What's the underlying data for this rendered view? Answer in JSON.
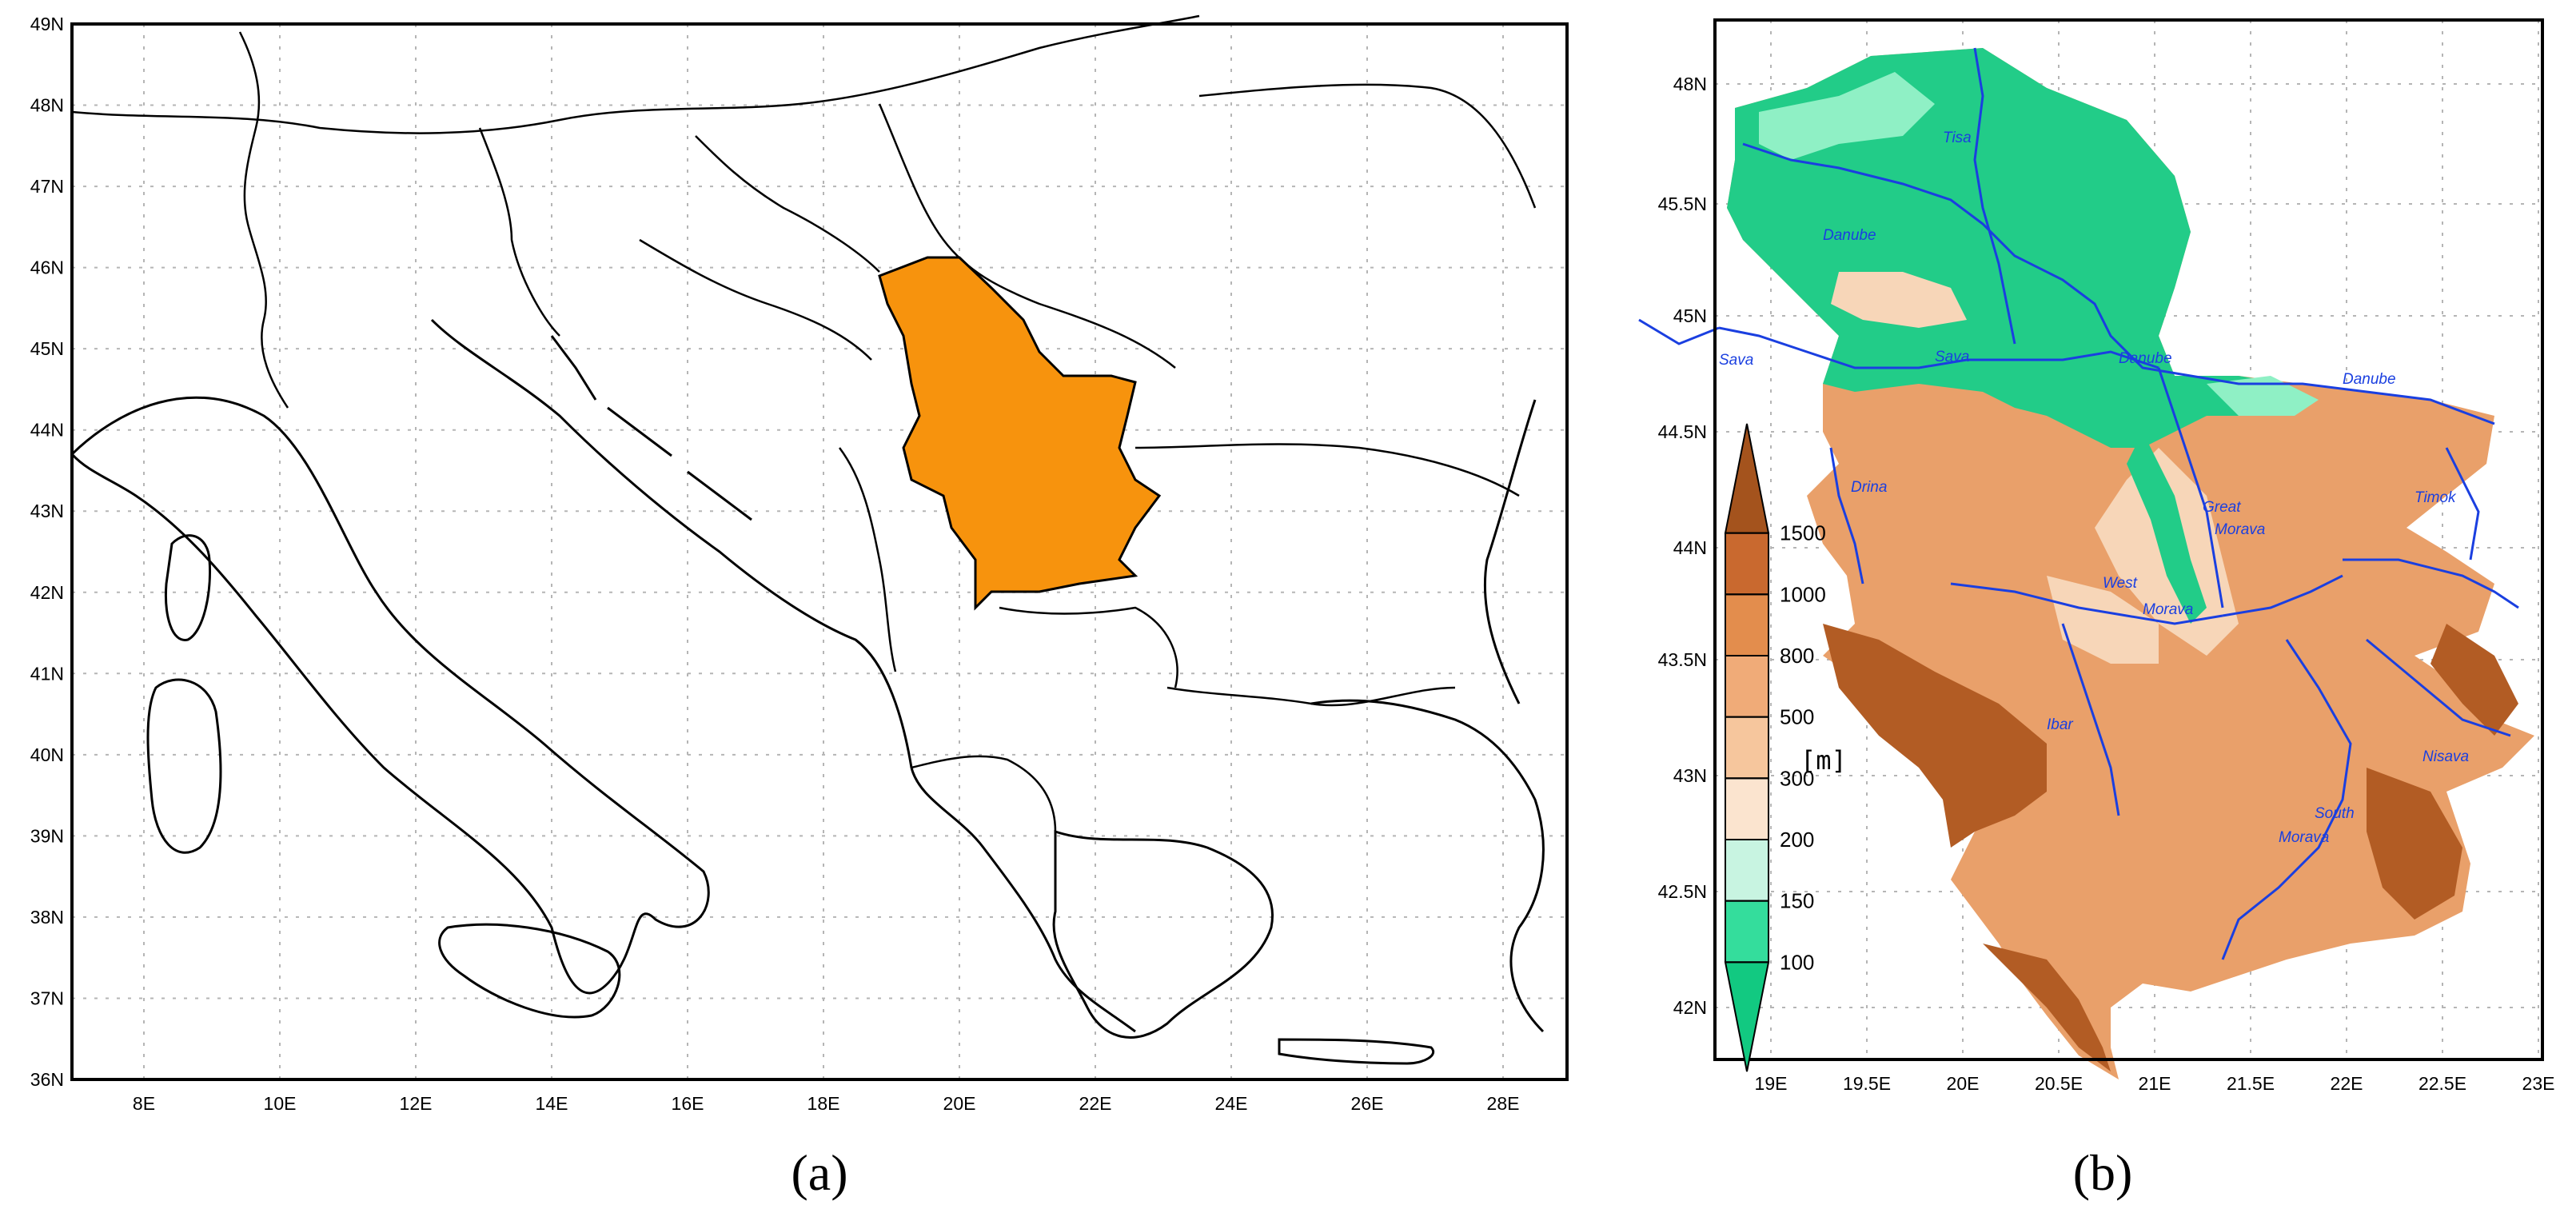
{
  "panel_a": {
    "label": "(a)",
    "lat_ticks": [
      "49N",
      "48N",
      "47N",
      "46N",
      "45N",
      "44N",
      "43N",
      "42N",
      "41N",
      "40N",
      "39N",
      "38N",
      "37N",
      "36N"
    ],
    "lon_ticks": [
      "8E",
      "10E",
      "12E",
      "14E",
      "16E",
      "18E",
      "20E",
      "22E",
      "24E",
      "26E",
      "28E"
    ],
    "highlight_color": "#f7930d"
  },
  "panel_b": {
    "label": "(b)",
    "lat_ticks": [
      "48N",
      "45.5N",
      "45N",
      "44.5N",
      "44N",
      "43.5N",
      "43N",
      "42.5N",
      "42N"
    ],
    "lon_ticks": [
      "19E",
      "19.5E",
      "20E",
      "20.5E",
      "21E",
      "21.5E",
      "22E",
      "22.5E",
      "23E"
    ],
    "rivers": [
      "Tisa",
      "Danube",
      "Sava",
      "Sava",
      "Danube",
      "Danube",
      "Drina",
      "Great",
      "Morava",
      "West",
      "Morava",
      "Ibar",
      "Timok",
      "Nisava",
      "South",
      "Morava"
    ],
    "colorbar": {
      "unit": "[m]",
      "levels": [
        "1500",
        "1000",
        "800",
        "500",
        "300",
        "200",
        "150",
        "100"
      ],
      "colors": [
        "#a4531d",
        "#c9692f",
        "#e38d4d",
        "#f0ab78",
        "#f6c69d",
        "#fbe4cf",
        "#c8f4e1",
        "#34dd9c",
        "#12c981"
      ]
    }
  }
}
